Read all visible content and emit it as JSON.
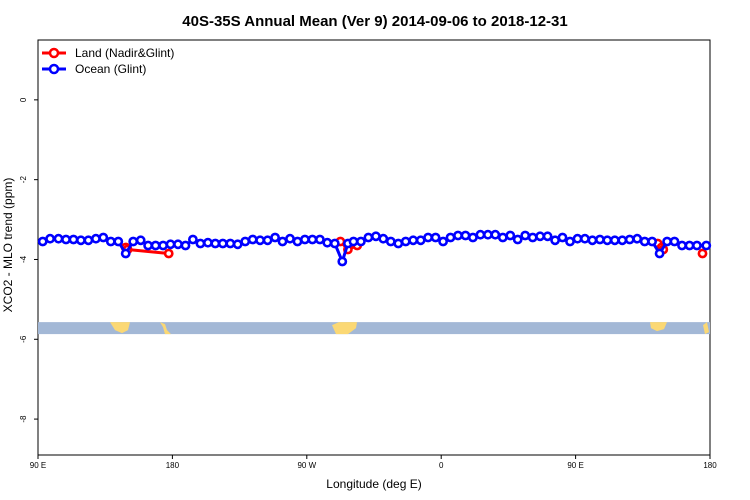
{
  "chart_data": {
    "type": "line",
    "title": "40S-35S Annual Mean (Ver 9)   2014-09-06 to 2018-12-31",
    "xlabel": "Longitude (deg E)",
    "ylabel": "XCO2 - MLO trend (ppm)",
    "xlim": [
      90,
      450
    ],
    "ylim": [
      -8.9,
      1.5
    ],
    "x_ticks": [
      {
        "value": 90,
        "label": "90 E"
      },
      {
        "value": 162,
        "label": "180"
      },
      {
        "value": 234,
        "label": "90 W"
      },
      {
        "value": 306,
        "label": "0"
      },
      {
        "value": 378,
        "label": "90 E"
      },
      {
        "value": 450,
        "label": "180"
      }
    ],
    "y_ticks": [
      {
        "value": 0,
        "label": "0"
      },
      {
        "value": -2,
        "label": "-2"
      },
      {
        "value": -4,
        "label": "-4"
      },
      {
        "value": -6,
        "label": "-6"
      },
      {
        "value": -8,
        "label": "-8"
      }
    ],
    "legend": {
      "position": "top-left"
    },
    "series": [
      {
        "name": "Land (Nadir&Glint)",
        "color": "#ff0000",
        "segments": [
          {
            "x": [
              137,
              138,
              160
            ],
            "y": [
              -3.7,
              -3.75,
              -3.85
            ]
          },
          {
            "x": [
              252,
              256,
              261
            ],
            "y": [
              -3.55,
              -3.75,
              -3.65
            ]
          },
          {
            "x": [
              422,
              424,
              425
            ],
            "y": [
              -3.6,
              -3.7,
              -3.75
            ]
          },
          {
            "x": [
              446
            ],
            "y": [
              -3.85
            ]
          }
        ]
      },
      {
        "name": "Ocean (Glint)",
        "color": "#0000ff",
        "segments": [
          {
            "x": [
              92.5,
              96.5,
              101,
              105,
              109,
              113,
              117,
              121,
              125,
              129,
              133,
              137,
              141,
              145,
              149,
              153,
              157,
              161,
              165,
              169,
              173,
              177,
              181,
              185,
              189,
              193,
              197,
              201,
              205,
              209,
              213,
              217,
              221,
              225,
              229,
              233,
              237,
              241,
              245,
              249,
              253,
              256,
              259,
              263,
              267,
              271,
              275,
              279,
              283,
              287,
              291,
              295,
              299,
              303,
              307,
              311,
              315,
              319,
              323,
              327,
              331,
              335,
              339,
              343,
              347,
              351,
              355,
              359,
              363,
              367,
              371,
              375,
              379,
              383,
              387,
              391,
              395,
              399,
              403,
              407,
              411,
              415,
              419,
              423,
              427,
              431,
              435,
              439,
              443,
              448
            ],
            "y": [
              -3.55,
              -3.48,
              -3.48,
              -3.5,
              -3.5,
              -3.52,
              -3.52,
              -3.48,
              -3.45,
              -3.55,
              -3.55,
              -3.85,
              -3.55,
              -3.52,
              -3.65,
              -3.65,
              -3.65,
              -3.62,
              -3.62,
              -3.65,
              -3.5,
              -3.6,
              -3.58,
              -3.6,
              -3.6,
              -3.6,
              -3.62,
              -3.55,
              -3.5,
              -3.52,
              -3.52,
              -3.45,
              -3.55,
              -3.48,
              -3.55,
              -3.5,
              -3.5,
              -3.5,
              -3.58,
              -3.6,
              -4.05,
              -3.6,
              -3.55,
              -3.55,
              -3.45,
              -3.42,
              -3.48,
              -3.55,
              -3.6,
              -3.55,
              -3.52,
              -3.52,
              -3.45,
              -3.45,
              -3.55,
              -3.45,
              -3.4,
              -3.4,
              -3.45,
              -3.38,
              -3.38,
              -3.38,
              -3.45,
              -3.4,
              -3.5,
              -3.4,
              -3.45,
              -3.42,
              -3.42,
              -3.52,
              -3.45,
              -3.55,
              -3.48,
              -3.48,
              -3.52,
              -3.5,
              -3.52,
              -3.52,
              -3.52,
              -3.5,
              -3.48,
              -3.55,
              -3.55,
              -3.85,
              -3.55,
              -3.55,
              -3.65,
              -3.65,
              -3.65,
              -3.65
            ]
          }
        ]
      }
    ],
    "land_strip": {
      "y_top": -5.57,
      "y_bottom": -5.87,
      "ocean_color": "#a3b8d6",
      "land_color": "#fbd874"
    }
  }
}
